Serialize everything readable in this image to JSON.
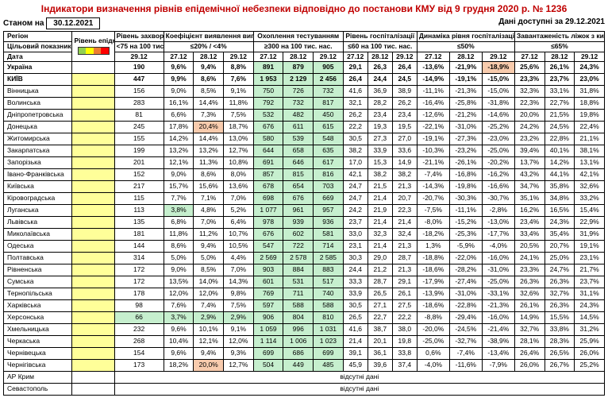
{
  "title": "Індикатори визначення рівнів епідемічної небезпеки відповідно до постанови КМУ від 9 грудня 2020 р. № 1236",
  "asof_label": "Станом на",
  "asof_date": "30.12.2021",
  "avail_label": "Дані доступні за",
  "avail_date": "29.12.2021",
  "h": {
    "region": "Регіон",
    "target": "Цільовий показник",
    "date": "Дата",
    "level": "Рівень епіднебезпеки",
    "morb": "Рівень захворюваності",
    "morb_sub": "<75 на 100 тис. нас.",
    "coef": "Коефіцієнт виявлення випадків інфікування",
    "coef_sub": "≤20% / <4%",
    "test": "Охоплення тестуванням",
    "test_sub": "≥300 на 100 тис. нас.",
    "hosp": "Рівень госпіталізації",
    "hosp_sub": "≤60 на 100 тис. нас.",
    "dyn": "Динаміка рівня госпіталізацій",
    "dyn_sub": "≤50%",
    "beds": "Завантаженість ліжок з киснем",
    "beds_sub": "≤65%",
    "d27": "27.12",
    "d28": "28.12",
    "d29": "29.12"
  },
  "footer_label": "відсутні дані",
  "rows": [
    {
      "region": "Україна",
      "bold": true,
      "lvl": "",
      "morb": "190",
      "mb": true,
      "coef": [
        "9,6%",
        "9,4%",
        "8,8%"
      ],
      "coefCls": [
        "",
        "",
        ""
      ],
      "test": [
        "891",
        "879",
        "905"
      ],
      "testCls": [
        "green",
        "green",
        "green"
      ],
      "hosp": [
        "29,1",
        "26,3",
        "26,4"
      ],
      "dyn": [
        "-13,6%",
        "-21,9%",
        "-18,9%"
      ],
      "dynCls": [
        "",
        "",
        "pink"
      ],
      "beds": [
        "25,6%",
        "26,1%",
        "24,3%"
      ]
    },
    {
      "region": "КИЇВ",
      "bold": true,
      "lvl": "yellow",
      "morb": "447",
      "coef": [
        "9,9%",
        "8,6%",
        "7,6%"
      ],
      "coefCls": [
        "",
        "",
        ""
      ],
      "test": [
        "1 953",
        "2 129",
        "2 456"
      ],
      "testCls": [
        "green",
        "green",
        "green"
      ],
      "hosp": [
        "26,4",
        "24,4",
        "24,5"
      ],
      "dyn": [
        "-14,9%",
        "-19,1%",
        "-15,0%"
      ],
      "dynCls": [
        "",
        "",
        ""
      ],
      "beds": [
        "23,3%",
        "23,7%",
        "23,0%"
      ]
    },
    {
      "region": "Вінницька",
      "lvl": "yellow",
      "morb": "156",
      "coef": [
        "9,0%",
        "8,5%",
        "9,1%"
      ],
      "coefCls": [
        "",
        "",
        ""
      ],
      "test": [
        "750",
        "726",
        "732"
      ],
      "testCls": [
        "green",
        "green",
        "green"
      ],
      "hosp": [
        "41,6",
        "36,9",
        "38,9"
      ],
      "dyn": [
        "-11,1%",
        "-21,3%",
        "-15,0%"
      ],
      "dynCls": [
        "",
        "",
        ""
      ],
      "beds": [
        "32,3%",
        "33,1%",
        "31,8%"
      ]
    },
    {
      "region": "Волинська",
      "lvl": "yellow",
      "morb": "283",
      "coef": [
        "16,1%",
        "14,4%",
        "11,8%"
      ],
      "coefCls": [
        "",
        "",
        ""
      ],
      "test": [
        "792",
        "732",
        "817"
      ],
      "testCls": [
        "green",
        "green",
        "green"
      ],
      "hosp": [
        "32,1",
        "28,2",
        "26,2"
      ],
      "dyn": [
        "-16,4%",
        "-25,8%",
        "-31,8%"
      ],
      "dynCls": [
        "",
        "",
        ""
      ],
      "beds": [
        "22,3%",
        "22,7%",
        "18,8%"
      ]
    },
    {
      "region": "Дніпропетровська",
      "lvl": "yellow",
      "morb": "81",
      "coef": [
        "6,6%",
        "7,3%",
        "7,5%"
      ],
      "coefCls": [
        "",
        "",
        ""
      ],
      "test": [
        "532",
        "482",
        "450"
      ],
      "testCls": [
        "green",
        "green",
        "green"
      ],
      "hosp": [
        "26,2",
        "23,4",
        "23,4"
      ],
      "dyn": [
        "-12,6%",
        "-21,2%",
        "-14,6%"
      ],
      "dynCls": [
        "",
        "",
        ""
      ],
      "beds": [
        "20,0%",
        "21,5%",
        "19,8%"
      ]
    },
    {
      "region": "Донецька",
      "lvl": "yellow",
      "morb": "245",
      "coef": [
        "17,8%",
        "20,4%",
        "18,7%"
      ],
      "coefCls": [
        "",
        "pink",
        ""
      ],
      "test": [
        "676",
        "611",
        "615"
      ],
      "testCls": [
        "green",
        "green",
        "green"
      ],
      "hosp": [
        "22,2",
        "19,3",
        "19,5"
      ],
      "dyn": [
        "-22,1%",
        "-31,0%",
        "-25,2%"
      ],
      "dynCls": [
        "",
        "",
        ""
      ],
      "beds": [
        "24,2%",
        "24,5%",
        "22,4%"
      ]
    },
    {
      "region": "Житомирська",
      "lvl": "yellow",
      "morb": "155",
      "coef": [
        "14,2%",
        "14,4%",
        "13,0%"
      ],
      "coefCls": [
        "",
        "",
        ""
      ],
      "test": [
        "580",
        "539",
        "548"
      ],
      "testCls": [
        "green",
        "green",
        "green"
      ],
      "hosp": [
        "30,5",
        "27,3",
        "27,0"
      ],
      "dyn": [
        "-19,1%",
        "-27,3%",
        "-23,0%"
      ],
      "dynCls": [
        "",
        "",
        ""
      ],
      "beds": [
        "23,2%",
        "22,8%",
        "21,1%"
      ]
    },
    {
      "region": "Закарпатська",
      "lvl": "yellow",
      "morb": "199",
      "coef": [
        "13,2%",
        "13,2%",
        "12,7%"
      ],
      "coefCls": [
        "",
        "",
        ""
      ],
      "test": [
        "644",
        "658",
        "635"
      ],
      "testCls": [
        "green",
        "green",
        "green"
      ],
      "hosp": [
        "38,2",
        "33,9",
        "33,6"
      ],
      "dyn": [
        "-10,3%",
        "-23,2%",
        "-25,0%"
      ],
      "dynCls": [
        "",
        "",
        ""
      ],
      "beds": [
        "39,4%",
        "40,1%",
        "38,1%"
      ]
    },
    {
      "region": "Запорізька",
      "lvl": "yellow",
      "morb": "201",
      "coef": [
        "12,1%",
        "11,3%",
        "10,8%"
      ],
      "coefCls": [
        "",
        "",
        ""
      ],
      "test": [
        "691",
        "646",
        "617"
      ],
      "testCls": [
        "green",
        "green",
        "green"
      ],
      "hosp": [
        "17,0",
        "15,3",
        "14,9"
      ],
      "dyn": [
        "-21,1%",
        "-26,1%",
        "-20,2%"
      ],
      "dynCls": [
        "",
        "",
        ""
      ],
      "beds": [
        "13,7%",
        "14,2%",
        "13,1%"
      ]
    },
    {
      "region": "Івано-Франківська",
      "lvl": "yellow",
      "morb": "152",
      "coef": [
        "9,0%",
        "8,6%",
        "8,0%"
      ],
      "coefCls": [
        "",
        "",
        ""
      ],
      "test": [
        "857",
        "815",
        "816"
      ],
      "testCls": [
        "green",
        "green",
        "green"
      ],
      "hosp": [
        "42,1",
        "38,2",
        "38,2"
      ],
      "dyn": [
        "-7,4%",
        "-16,8%",
        "-16,2%"
      ],
      "dynCls": [
        "",
        "",
        ""
      ],
      "beds": [
        "43,2%",
        "44,1%",
        "42,1%"
      ]
    },
    {
      "region": "Київська",
      "lvl": "yellow",
      "morb": "217",
      "coef": [
        "15,7%",
        "15,6%",
        "13,6%"
      ],
      "coefCls": [
        "",
        "",
        ""
      ],
      "test": [
        "678",
        "654",
        "703"
      ],
      "testCls": [
        "green",
        "green",
        "green"
      ],
      "hosp": [
        "24,7",
        "21,5",
        "21,3"
      ],
      "dyn": [
        "-14,3%",
        "-19,8%",
        "-16,6%"
      ],
      "dynCls": [
        "",
        "",
        ""
      ],
      "beds": [
        "34,7%",
        "35,8%",
        "32,6%"
      ]
    },
    {
      "region": "Кіровоградська",
      "lvl": "yellow",
      "morb": "115",
      "coef": [
        "7,7%",
        "7,1%",
        "7,0%"
      ],
      "coefCls": [
        "",
        "",
        ""
      ],
      "test": [
        "698",
        "676",
        "669"
      ],
      "testCls": [
        "green",
        "green",
        "green"
      ],
      "hosp": [
        "24,7",
        "21,4",
        "20,7"
      ],
      "dyn": [
        "-20,7%",
        "-30,3%",
        "-30,7%"
      ],
      "dynCls": [
        "",
        "",
        ""
      ],
      "beds": [
        "35,1%",
        "34,8%",
        "33,2%"
      ]
    },
    {
      "region": "Луганська",
      "lvl": "yellow",
      "morb": "113",
      "coef": [
        "3,8%",
        "4,8%",
        "5,2%"
      ],
      "coefCls": [
        "green",
        "",
        ""
      ],
      "test": [
        "1 077",
        "961",
        "957"
      ],
      "testCls": [
        "green",
        "green",
        "green"
      ],
      "hosp": [
        "24,2",
        "21,9",
        "22,3"
      ],
      "dyn": [
        "-7,5%",
        "-11,1%",
        "-2,8%"
      ],
      "dynCls": [
        "",
        "",
        ""
      ],
      "beds": [
        "16,2%",
        "16,5%",
        "15,4%"
      ]
    },
    {
      "region": "Львівська",
      "lvl": "yellow",
      "morb": "135",
      "coef": [
        "6,8%",
        "7,0%",
        "6,4%"
      ],
      "coefCls": [
        "",
        "",
        ""
      ],
      "test": [
        "978",
        "939",
        "936"
      ],
      "testCls": [
        "green",
        "green",
        "green"
      ],
      "hosp": [
        "23,7",
        "21,4",
        "21,4"
      ],
      "dyn": [
        "-8,0%",
        "-15,2%",
        "-13,0%"
      ],
      "dynCls": [
        "",
        "",
        ""
      ],
      "beds": [
        "23,4%",
        "24,3%",
        "22,9%"
      ]
    },
    {
      "region": "Миколаївська",
      "lvl": "yellow",
      "morb": "181",
      "coef": [
        "11,8%",
        "11,2%",
        "10,7%"
      ],
      "coefCls": [
        "",
        "",
        ""
      ],
      "test": [
        "676",
        "602",
        "581"
      ],
      "testCls": [
        "green",
        "green",
        "green"
      ],
      "hosp": [
        "33,0",
        "32,3",
        "32,4"
      ],
      "dyn": [
        "-18,2%",
        "-25,3%",
        "-17,7%"
      ],
      "dynCls": [
        "",
        "",
        ""
      ],
      "beds": [
        "33,4%",
        "35,4%",
        "31,9%"
      ]
    },
    {
      "region": "Одеська",
      "lvl": "yellow",
      "morb": "144",
      "coef": [
        "8,6%",
        "9,4%",
        "10,5%"
      ],
      "coefCls": [
        "",
        "",
        ""
      ],
      "test": [
        "547",
        "722",
        "714"
      ],
      "testCls": [
        "green",
        "green",
        "green"
      ],
      "hosp": [
        "23,1",
        "21,4",
        "21,3"
      ],
      "dyn": [
        "1,3%",
        "-5,9%",
        "-4,0%"
      ],
      "dynCls": [
        "",
        "",
        ""
      ],
      "beds": [
        "20,5%",
        "20,7%",
        "19,1%"
      ]
    },
    {
      "region": "Полтавська",
      "lvl": "yellow",
      "morb": "314",
      "coef": [
        "5,0%",
        "5,0%",
        "4,4%"
      ],
      "coefCls": [
        "",
        "",
        ""
      ],
      "test": [
        "2 569",
        "2 578",
        "2 585"
      ],
      "testCls": [
        "green",
        "green",
        "green"
      ],
      "hosp": [
        "30,3",
        "29,0",
        "28,7"
      ],
      "dyn": [
        "-18,8%",
        "-22,0%",
        "-16,0%"
      ],
      "dynCls": [
        "",
        "",
        ""
      ],
      "beds": [
        "24,1%",
        "25,0%",
        "23,1%"
      ]
    },
    {
      "region": "Рівненська",
      "lvl": "yellow",
      "morb": "172",
      "coef": [
        "9,0%",
        "8,5%",
        "7,0%"
      ],
      "coefCls": [
        "",
        "",
        ""
      ],
      "test": [
        "903",
        "884",
        "883"
      ],
      "testCls": [
        "green",
        "green",
        "green"
      ],
      "hosp": [
        "24,4",
        "21,2",
        "21,3"
      ],
      "dyn": [
        "-18,6%",
        "-28,2%",
        "-31,0%"
      ],
      "dynCls": [
        "",
        "",
        ""
      ],
      "beds": [
        "23,3%",
        "24,7%",
        "21,7%"
      ]
    },
    {
      "region": "Сумська",
      "lvl": "yellow",
      "morb": "172",
      "coef": [
        "13,5%",
        "14,0%",
        "14,3%"
      ],
      "coefCls": [
        "",
        "",
        ""
      ],
      "test": [
        "601",
        "531",
        "517"
      ],
      "testCls": [
        "green",
        "green",
        "green"
      ],
      "hosp": [
        "33,3",
        "28,7",
        "29,1"
      ],
      "dyn": [
        "-17,9%",
        "-27,4%",
        "-25,0%"
      ],
      "dynCls": [
        "",
        "",
        ""
      ],
      "beds": [
        "26,3%",
        "26,3%",
        "23,7%"
      ]
    },
    {
      "region": "Тернопільська",
      "lvl": "yellow",
      "morb": "178",
      "coef": [
        "12,0%",
        "12,0%",
        "9,8%"
      ],
      "coefCls": [
        "",
        "",
        ""
      ],
      "test": [
        "769",
        "711",
        "740"
      ],
      "testCls": [
        "green",
        "green",
        "green"
      ],
      "hosp": [
        "33,9",
        "26,5",
        "26,1"
      ],
      "dyn": [
        "-13,9%",
        "-31,0%",
        "-33,1%"
      ],
      "dynCls": [
        "",
        "",
        ""
      ],
      "beds": [
        "32,6%",
        "32,7%",
        "31,1%"
      ]
    },
    {
      "region": "Харківська",
      "lvl": "yellow",
      "morb": "98",
      "coef": [
        "7,6%",
        "7,4%",
        "7,5%"
      ],
      "coefCls": [
        "",
        "",
        ""
      ],
      "test": [
        "597",
        "588",
        "588"
      ],
      "testCls": [
        "green",
        "green",
        "green"
      ],
      "hosp": [
        "30,5",
        "27,1",
        "27,5"
      ],
      "dyn": [
        "-18,6%",
        "-22,8%",
        "-21,3%"
      ],
      "dynCls": [
        "",
        "",
        ""
      ],
      "beds": [
        "26,1%",
        "26,3%",
        "24,3%"
      ]
    },
    {
      "region": "Херсонська",
      "lvl": "yellow",
      "morb": "66",
      "morbCls": "green",
      "coef": [
        "3,7%",
        "2,9%",
        "2,9%"
      ],
      "coefCls": [
        "green",
        "green",
        "green"
      ],
      "test": [
        "906",
        "804",
        "810"
      ],
      "testCls": [
        "green",
        "green",
        "green"
      ],
      "hosp": [
        "26,5",
        "22,7",
        "22,2"
      ],
      "dyn": [
        "-8,8%",
        "-29,4%",
        "-16,0%"
      ],
      "dynCls": [
        "",
        "",
        ""
      ],
      "beds": [
        "14,9%",
        "15,5%",
        "14,5%"
      ]
    },
    {
      "region": "Хмельницька",
      "lvl": "yellow",
      "morb": "232",
      "coef": [
        "9,6%",
        "10,1%",
        "9,1%"
      ],
      "coefCls": [
        "",
        "",
        ""
      ],
      "test": [
        "1 059",
        "996",
        "1 031"
      ],
      "testCls": [
        "green",
        "green",
        "green"
      ],
      "hosp": [
        "41,6",
        "38,7",
        "38,0"
      ],
      "dyn": [
        "-20,0%",
        "-24,5%",
        "-21,4%"
      ],
      "dynCls": [
        "",
        "",
        ""
      ],
      "beds": [
        "32,7%",
        "33,8%",
        "31,2%"
      ]
    },
    {
      "region": "Черкаська",
      "lvl": "yellow",
      "morb": "268",
      "coef": [
        "10,4%",
        "12,1%",
        "12,0%"
      ],
      "coefCls": [
        "",
        "",
        ""
      ],
      "test": [
        "1 114",
        "1 006",
        "1 023"
      ],
      "testCls": [
        "green",
        "green",
        "green"
      ],
      "hosp": [
        "21,4",
        "20,1",
        "19,8"
      ],
      "dyn": [
        "-25,0%",
        "-32,7%",
        "-38,9%"
      ],
      "dynCls": [
        "",
        "",
        ""
      ],
      "beds": [
        "28,1%",
        "28,3%",
        "25,9%"
      ]
    },
    {
      "region": "Чернівецька",
      "lvl": "yellow",
      "morb": "154",
      "coef": [
        "9,6%",
        "9,4%",
        "9,3%"
      ],
      "coefCls": [
        "",
        "",
        ""
      ],
      "test": [
        "699",
        "686",
        "699"
      ],
      "testCls": [
        "green",
        "green",
        "green"
      ],
      "hosp": [
        "39,1",
        "36,1",
        "33,8"
      ],
      "dyn": [
        "0,6%",
        "-7,4%",
        "-13,4%"
      ],
      "dynCls": [
        "",
        "",
        ""
      ],
      "beds": [
        "26,4%",
        "26,5%",
        "26,0%"
      ]
    },
    {
      "region": "Чернігівська",
      "lvl": "yellow",
      "morb": "173",
      "coef": [
        "18,2%",
        "20,0%",
        "12,7%"
      ],
      "coefCls": [
        "",
        "pink",
        ""
      ],
      "test": [
        "504",
        "449",
        "485"
      ],
      "testCls": [
        "green",
        "green",
        "green"
      ],
      "hosp": [
        "45,9",
        "39,6",
        "37,4"
      ],
      "dyn": [
        "-4,0%",
        "-11,6%",
        "-7,9%"
      ],
      "dynCls": [
        "",
        "",
        ""
      ],
      "beds": [
        "26,0%",
        "26,7%",
        "25,2%"
      ]
    }
  ],
  "footer_rows": [
    {
      "region": "АР Крим"
    },
    {
      "region": "Севастополь"
    }
  ]
}
